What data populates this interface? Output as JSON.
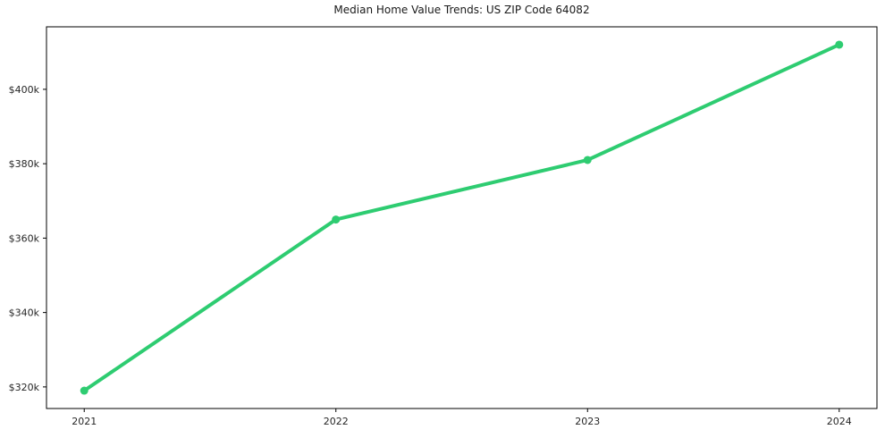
{
  "page": {
    "background": "#ffffff"
  },
  "chart_data": {
    "type": "line",
    "title": "Median Home Value Trends: US ZIP Code 64082",
    "x": [
      2021,
      2022,
      2023,
      2024
    ],
    "x_tick_labels": [
      "2021",
      "2022",
      "2023",
      "2024"
    ],
    "series": [
      {
        "name": "median-home-value",
        "values": [
          319000,
          365000,
          381000,
          412000
        ],
        "color": "#2ecc71",
        "marker": "circle",
        "line_width": 4,
        "marker_radius": 4.5
      }
    ],
    "xlim": [
      2020.85,
      2024.15
    ],
    "ylim": [
      314200,
      416800
    ],
    "y_ticks": [
      320000,
      340000,
      360000,
      380000,
      400000
    ],
    "y_tick_labels": [
      "$320k",
      "$340k",
      "$360k",
      "$380k",
      "$400k"
    ],
    "grid": false,
    "legend_position": "none",
    "frame": true,
    "text_color": "#262626",
    "axis_color": "#000000"
  }
}
